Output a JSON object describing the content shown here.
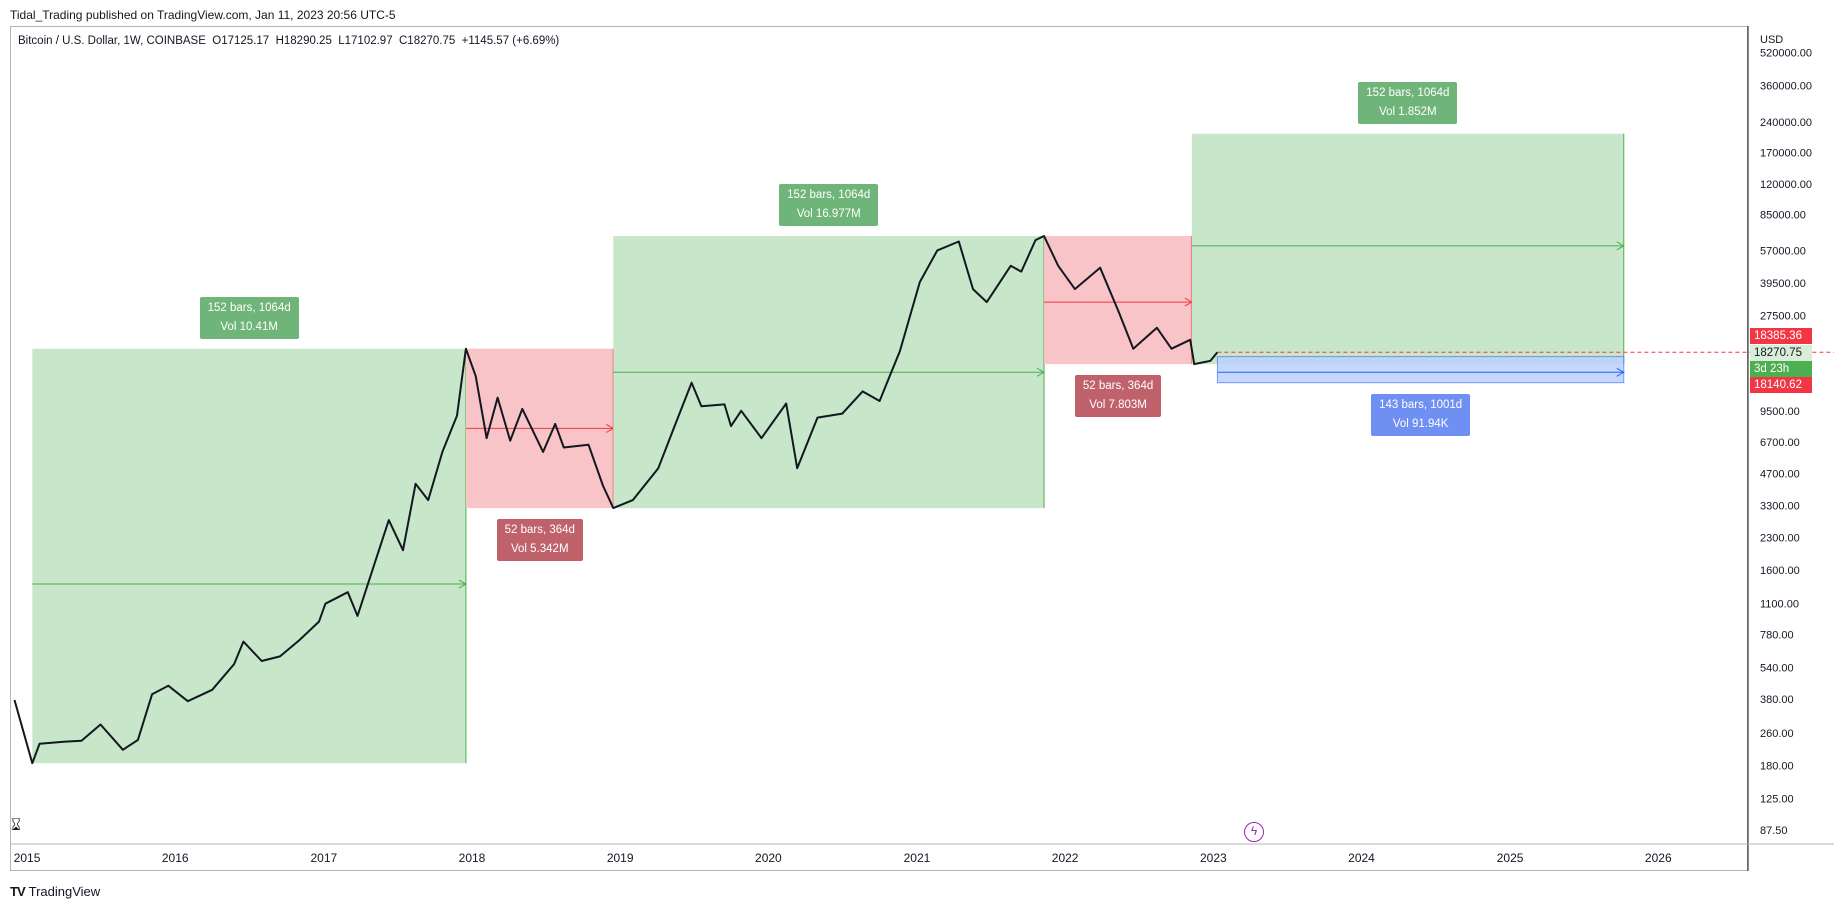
{
  "header": {
    "published": "Tidal_Trading published on TradingView.com, Jan 11, 2023 20:56 UTC-5",
    "legend": "Bitcoin / U.S. Dollar, 1W, COINBASE  O17125.17  H18290.25  L17102.97  C18270.75  +1145.57 (+6.69%)"
  },
  "footer": {
    "brand": "TradingView",
    "logo": "TV"
  },
  "chart_data": {
    "type": "candlestick",
    "title": "Bitcoin / U.S. Dollar, 1W, COINBASE",
    "currency": "USD",
    "y_scale": "log",
    "ylim": [
      75,
      700000
    ],
    "xlim": [
      "2014-11-20",
      "2026-08-10"
    ],
    "x_ticks": [
      "2015",
      "2016",
      "2017",
      "2018",
      "2019",
      "2020",
      "2021",
      "2022",
      "2023",
      "2024",
      "2025",
      "2026"
    ],
    "y_ticks": [
      520000,
      360000,
      240000,
      170000,
      120000,
      85000,
      57000,
      39500,
      27500,
      19000,
      13000,
      9500,
      6700,
      4700,
      3300,
      2300,
      1600,
      1100,
      780,
      540,
      380,
      260,
      180,
      125,
      87.5
    ],
    "y_tick_labels": [
      "520000.00",
      "360000.00",
      "240000.00",
      "170000.00",
      "120000.00",
      "85000.00",
      "57000.00",
      "39500.00",
      "27500.00",
      "19000.00",
      "13000.00",
      "9500.00",
      "6700.00",
      "4700.00",
      "3300.00",
      "2300.00",
      "1600.00",
      "1100.00",
      "780.00",
      "540.00",
      "380.00",
      "260.00",
      "180.00",
      "125.00",
      "87.50"
    ],
    "price_series": {
      "name": "BTC/USD weekly close",
      "points": [
        [
          "2014-12-01",
          375
        ],
        [
          "2015-01-14",
          185
        ],
        [
          "2015-02-01",
          230
        ],
        [
          "2015-04-01",
          235
        ],
        [
          "2015-05-15",
          238
        ],
        [
          "2015-07-01",
          285
        ],
        [
          "2015-08-25",
          215
        ],
        [
          "2015-10-01",
          240
        ],
        [
          "2015-11-05",
          400
        ],
        [
          "2015-12-15",
          440
        ],
        [
          "2016-02-01",
          370
        ],
        [
          "2016-04-01",
          420
        ],
        [
          "2016-05-25",
          560
        ],
        [
          "2016-06-17",
          720
        ],
        [
          "2016-08-01",
          580
        ],
        [
          "2016-09-15",
          610
        ],
        [
          "2016-11-01",
          730
        ],
        [
          "2016-12-20",
          900
        ],
        [
          "2017-01-05",
          1100
        ],
        [
          "2017-03-01",
          1250
        ],
        [
          "2017-03-25",
          960
        ],
        [
          "2017-05-05",
          1700
        ],
        [
          "2017-06-10",
          2800
        ],
        [
          "2017-07-15",
          2000
        ],
        [
          "2017-08-15",
          4200
        ],
        [
          "2017-09-15",
          3500
        ],
        [
          "2017-10-20",
          6000
        ],
        [
          "2017-11-25",
          9000
        ],
        [
          "2017-12-17",
          19000
        ],
        [
          "2018-01-10",
          14000
        ],
        [
          "2018-02-06",
          7000
        ],
        [
          "2018-03-05",
          11000
        ],
        [
          "2018-04-05",
          6800
        ],
        [
          "2018-05-05",
          9700
        ],
        [
          "2018-06-25",
          6000
        ],
        [
          "2018-07-25",
          8200
        ],
        [
          "2018-08-15",
          6300
        ],
        [
          "2018-10-15",
          6500
        ],
        [
          "2018-11-20",
          4100
        ],
        [
          "2018-12-15",
          3200
        ],
        [
          "2019-02-01",
          3500
        ],
        [
          "2019-04-05",
          5000
        ],
        [
          "2019-05-15",
          8000
        ],
        [
          "2019-06-26",
          13000
        ],
        [
          "2019-07-20",
          10000
        ],
        [
          "2019-09-15",
          10200
        ],
        [
          "2019-10-01",
          8000
        ],
        [
          "2019-10-26",
          9500
        ],
        [
          "2019-12-15",
          7000
        ],
        [
          "2020-02-14",
          10300
        ],
        [
          "2020-03-12",
          5000
        ],
        [
          "2020-05-01",
          8800
        ],
        [
          "2020-07-01",
          9200
        ],
        [
          "2020-08-20",
          11800
        ],
        [
          "2020-10-01",
          10600
        ],
        [
          "2020-11-20",
          18500
        ],
        [
          "2021-01-08",
          40000
        ],
        [
          "2021-02-20",
          57000
        ],
        [
          "2021-04-14",
          63000
        ],
        [
          "2021-05-19",
          37000
        ],
        [
          "2021-06-22",
          32000
        ],
        [
          "2021-08-20",
          48000
        ],
        [
          "2021-09-15",
          45000
        ],
        [
          "2021-10-20",
          64000
        ],
        [
          "2021-11-10",
          67000
        ],
        [
          "2021-12-15",
          48000
        ],
        [
          "2022-01-25",
          37000
        ],
        [
          "2022-03-28",
          47000
        ],
        [
          "2022-05-12",
          29000
        ],
        [
          "2022-06-18",
          19000
        ],
        [
          "2022-08-15",
          24000
        ],
        [
          "2022-09-20",
          19000
        ],
        [
          "2022-11-05",
          21000
        ],
        [
          "2022-11-15",
          16000
        ],
        [
          "2022-12-25",
          16600
        ],
        [
          "2023-01-11",
          18270
        ]
      ]
    },
    "ranges": [
      {
        "kind": "up",
        "start": "2015-01-14",
        "end": "2017-12-17",
        "low": 185,
        "high": 19000,
        "mid_price": 1370,
        "label": "152 bars, 1064d",
        "volume": "Vol 10.41M"
      },
      {
        "kind": "down",
        "start": "2017-12-17",
        "end": "2018-12-15",
        "low": 3200,
        "high": 19000,
        "mid_price": 7800,
        "label": "52 bars, 364d",
        "volume": "Vol 5.342M"
      },
      {
        "kind": "up",
        "start": "2018-12-15",
        "end": "2021-11-10",
        "low": 3200,
        "high": 67000,
        "mid_price": 14600,
        "label": "152 bars, 1064d",
        "volume": "Vol 16.977M"
      },
      {
        "kind": "down",
        "start": "2021-11-10",
        "end": "2022-11-09",
        "low": 16000,
        "high": 67000,
        "mid_price": 32000,
        "label": "52 bars, 364d",
        "volume": "Vol 7.803M"
      },
      {
        "kind": "up",
        "start": "2022-11-09",
        "end": "2025-10-08",
        "low": 16000,
        "high": 210000,
        "mid_price": 60000,
        "label": "152 bars, 1064d",
        "volume": "Vol 1.852M"
      },
      {
        "kind": "projection",
        "start": "2023-01-11",
        "end": "2025-10-08",
        "low": 13000,
        "high": 17400,
        "mid_price": 14600,
        "label": "143 bars, 1001d",
        "volume": "Vol 91.94K"
      }
    ],
    "price_tags": [
      {
        "value": "18385.36",
        "color": "#f23645"
      },
      {
        "value": "18270.75",
        "color": "#22ab94"
      },
      {
        "value": "3d 23h",
        "color": "#22ab94"
      },
      {
        "value": "18140.62",
        "color": "#f23645"
      }
    ],
    "colors": {
      "up_fill": "#c8e6c9",
      "up_line": "#4caf50",
      "down_fill": "#f8c4c8",
      "down_line": "#f23645",
      "proj_fill": "#bbd0fa",
      "proj_line": "#2962ff",
      "up_badge": "#6fb478",
      "down_badge": "#c0626b",
      "proj_badge": "#6f8ff3"
    }
  }
}
